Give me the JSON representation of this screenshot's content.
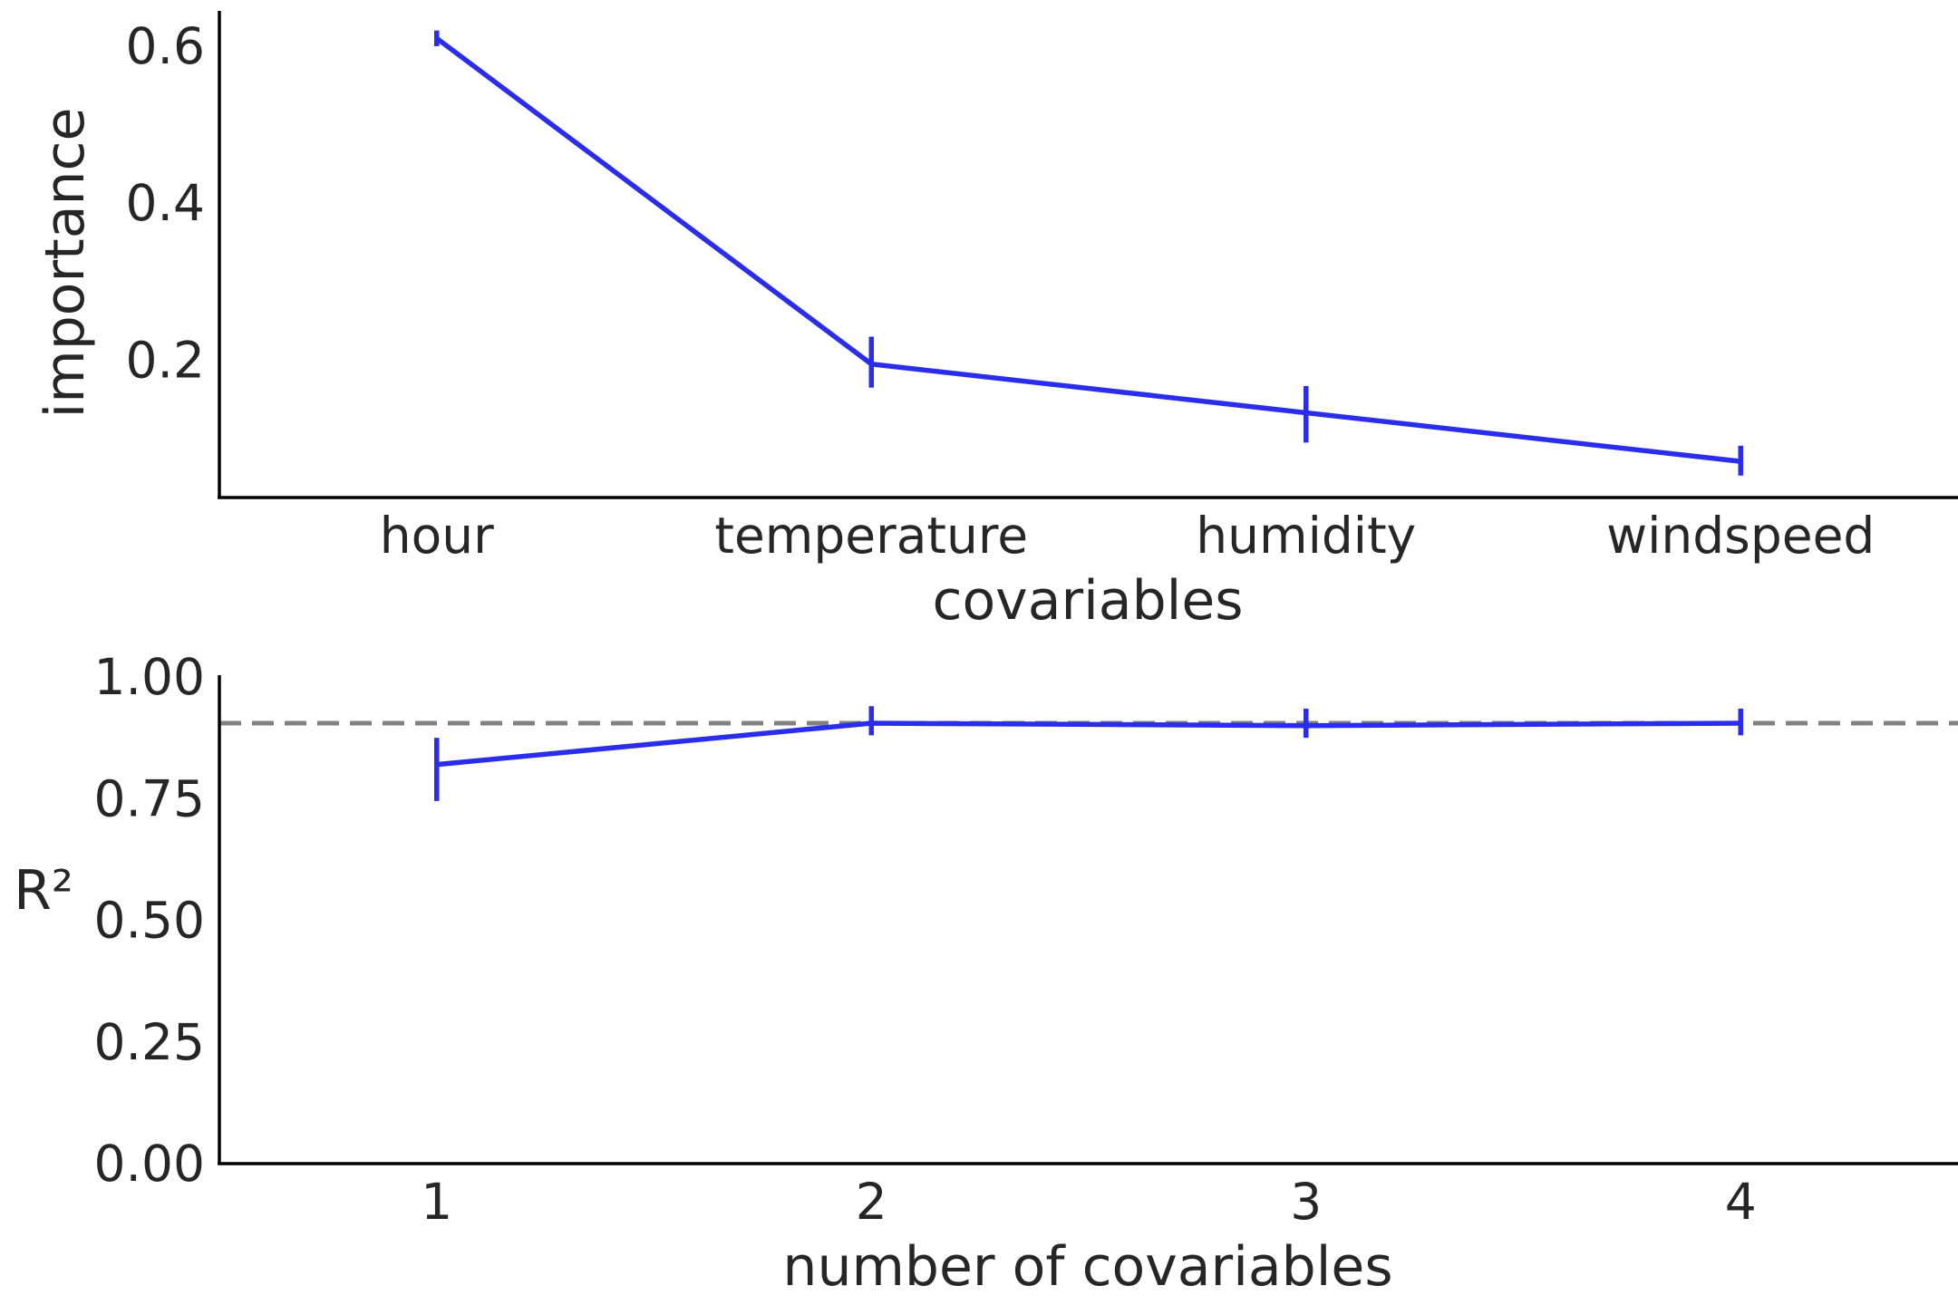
{
  "colors": {
    "series": "#2a2eec",
    "reference_line": "#808080",
    "axis": "#000000",
    "text": "#262626",
    "background": "#ffffff"
  },
  "chart_data": [
    {
      "type": "line",
      "title": "",
      "xlabel": "covariables",
      "ylabel": "importance",
      "categories": [
        "hour",
        "temperature",
        "humidity",
        "windspeed"
      ],
      "series": [
        {
          "values": [
            0.61,
            0.195,
            0.133,
            0.071
          ],
          "error_low": [
            0.6,
            0.165,
            0.095,
            0.053
          ],
          "error_high": [
            0.62,
            0.23,
            0.167,
            0.091
          ]
        }
      ],
      "yticks": [
        0.2,
        0.4,
        0.6
      ],
      "ytick_labels": [
        "0.2",
        "0.4",
        "0.6"
      ],
      "ylim": [
        0.025,
        0.645
      ],
      "grid": false,
      "legend": "none"
    },
    {
      "type": "line",
      "title": "",
      "xlabel": "number of covariables",
      "ylabel": "R²",
      "x": [
        1,
        2,
        3,
        4
      ],
      "xtick_labels": [
        "1",
        "2",
        "3",
        "4"
      ],
      "series": [
        {
          "values": [
            0.82,
            0.905,
            0.9,
            0.905
          ],
          "error_low": [
            0.745,
            0.88,
            0.875,
            0.88
          ],
          "error_high": [
            0.875,
            0.94,
            0.935,
            0.935
          ]
        }
      ],
      "reference_line": {
        "y": 0.905,
        "style": "dashed"
      },
      "yticks": [
        0,
        0.25,
        0.5,
        0.75,
        1.0
      ],
      "ytick_labels": [
        "0.00",
        "0.25",
        "0.50",
        "0.75",
        "1.00"
      ],
      "ylim": [
        0,
        1.0
      ],
      "xlim": [
        0.5,
        4.5
      ],
      "grid": false,
      "legend": "none"
    }
  ]
}
